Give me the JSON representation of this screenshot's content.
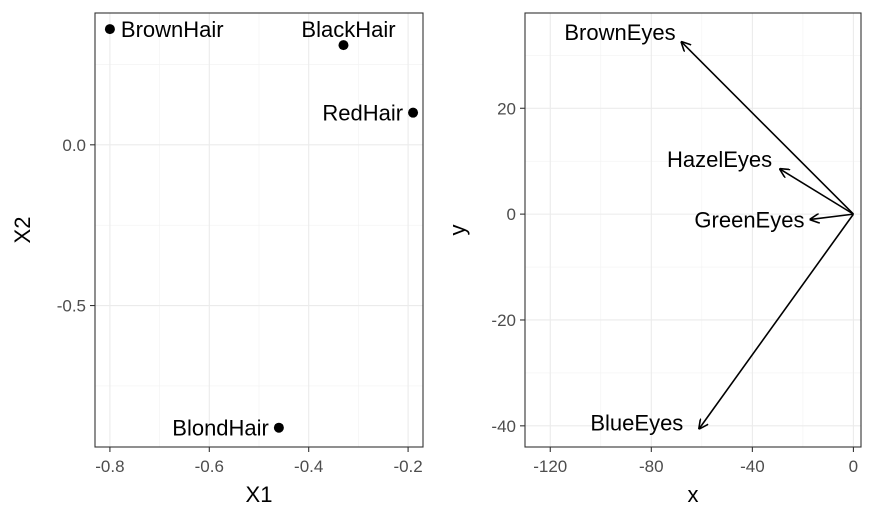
{
  "chart_data": [
    {
      "type": "scatter",
      "title": "",
      "xlabel": "X1",
      "ylabel": "X2",
      "xlim": [
        -0.83,
        -0.17
      ],
      "ylim": [
        -0.94,
        0.41
      ],
      "xticks": [
        -0.8,
        -0.6,
        -0.4,
        -0.2
      ],
      "xtick_labels": [
        "-0.8",
        "-0.6",
        "-0.4",
        "-0.2"
      ],
      "yticks": [
        0.0,
        -0.5
      ],
      "ytick_labels": [
        "0.0",
        "-0.5"
      ],
      "grid": true,
      "points": [
        {
          "label": "BrownHair",
          "x": -0.8,
          "y": 0.36
        },
        {
          "label": "BlackHair",
          "x": -0.33,
          "y": 0.31
        },
        {
          "label": "RedHair",
          "x": -0.19,
          "y": 0.1
        },
        {
          "label": "BlondHair",
          "x": -0.46,
          "y": -0.88
        }
      ]
    },
    {
      "type": "vector",
      "title": "",
      "xlabel": "x",
      "ylabel": "y",
      "xlim": [
        -130,
        3
      ],
      "ylim": [
        -44,
        38
      ],
      "xticks": [
        -120,
        -80,
        -40,
        0
      ],
      "xtick_labels": [
        "-120",
        "-80",
        "-40",
        "0"
      ],
      "yticks": [
        20,
        0,
        -20,
        -40
      ],
      "ytick_labels": [
        "20",
        "0",
        "-20",
        "-40"
      ],
      "grid": true,
      "origin": [
        0,
        0
      ],
      "arrows": [
        {
          "label": "BrownEyes",
          "x": -68,
          "y": 32.5
        },
        {
          "label": "HazelEyes",
          "x": -29,
          "y": 8.5
        },
        {
          "label": "GreenEyes",
          "x": -17,
          "y": -1
        },
        {
          "label": "BlueEyes",
          "x": -61,
          "y": -40.5
        }
      ]
    }
  ]
}
